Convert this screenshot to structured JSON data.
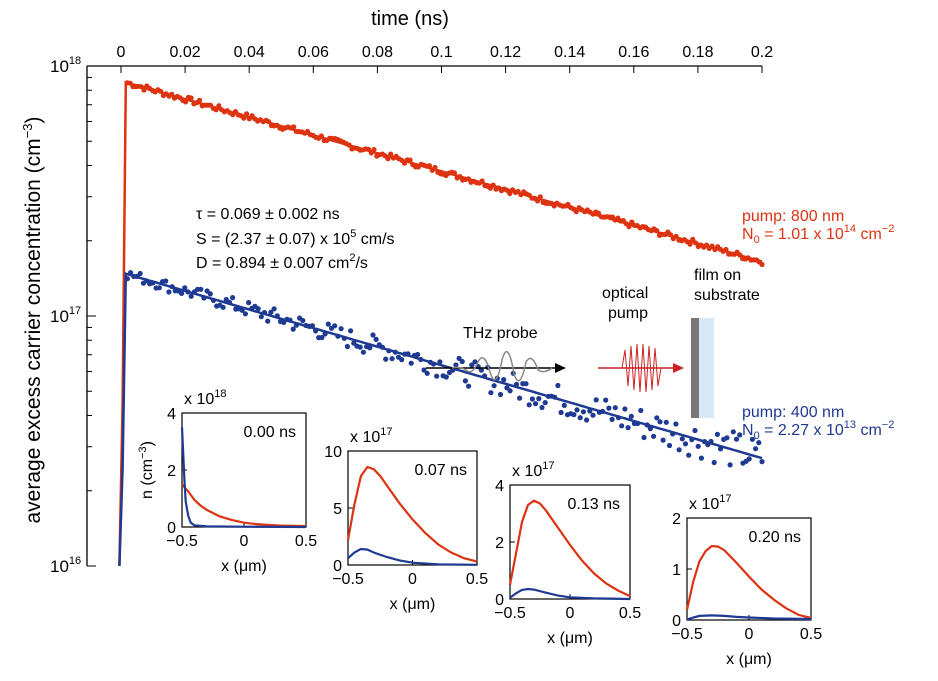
{
  "chart_data": {
    "type": "scatter",
    "xlabel": "time (ns)",
    "ylabel_main": "average excess carrier concentration (cm",
    "ylabel_sup": "−3",
    "ylabel_close": ")",
    "xlim": [
      0,
      0.2
    ],
    "ylim": [
      1e+16,
      1e+18
    ],
    "yscale": "log",
    "x_ticks": [
      "0",
      "0.02",
      "0.04",
      "0.06",
      "0.08",
      "0.1",
      "0.12",
      "0.14",
      "0.16",
      "0.18",
      "0.2"
    ],
    "y_tick_labels": [
      {
        "base": "10",
        "exp": "18"
      },
      {
        "base": "10",
        "exp": "17"
      },
      {
        "base": "10",
        "exp": "16"
      }
    ],
    "series": [
      {
        "color": "#dd3311",
        "label_pump": "pump: 800 nm",
        "label_n_pre": "N",
        "label_n_sub": "0",
        "label_n_mid": " = 1.01 x 10",
        "label_n_sup": "14",
        "label_n_mid2": " cm",
        "label_n_sup2": "−2",
        "peak": 8.6e+17,
        "end": 1.65e+17
      },
      {
        "color": "#1f3a93",
        "label_pump": "pump: 400 nm",
        "label_n_pre": "N",
        "label_n_sub": "0",
        "label_n_mid": " = 2.27 x 10",
        "label_n_sup": "13",
        "label_n_mid2": " cm",
        "label_n_sup2": "−2",
        "peak": 1.8e+17,
        "end": 2.7e+16
      }
    ],
    "fit": {
      "tau": "τ = 0.069 ± 0.002 ns",
      "s_pre": "S = (2.37 ± 0.07) x 10",
      "s_sup": "5",
      "s_post": " cm/s",
      "d_pre": "D = 0.894 ± 0.007 cm",
      "d_sup": "2",
      "d_post": "/s"
    },
    "schematic": {
      "thz": "THz probe",
      "pump1": "optical",
      "pump2": "pump",
      "film1": "film on",
      "film2": "substrate"
    },
    "insets": [
      {
        "time": "0.00 ns",
        "scale_pre": "x 10",
        "scale_exp": "18",
        "ylim": [
          0,
          4
        ],
        "yticks": [
          "0",
          "2",
          "4"
        ],
        "ylabel": "n (cm",
        "ylabel_sup": "−3",
        "ylabel_close": ")",
        "xticks": [
          "−0.5",
          "0",
          "0.5"
        ],
        "xlabel": "x (μm)",
        "red": [
          [
            -0.5,
            1.5
          ],
          [
            -0.45,
            1.25
          ],
          [
            -0.4,
            0.95
          ],
          [
            -0.35,
            0.75
          ],
          [
            -0.3,
            0.6
          ],
          [
            -0.2,
            0.38
          ],
          [
            -0.1,
            0.25
          ],
          [
            0,
            0.15
          ],
          [
            0.1,
            0.1
          ],
          [
            0.2,
            0.07
          ],
          [
            0.3,
            0.05
          ],
          [
            0.4,
            0.04
          ],
          [
            0.5,
            0.03
          ]
        ],
        "blue": [
          [
            -0.5,
            3.5
          ],
          [
            -0.49,
            2.6
          ],
          [
            -0.48,
            1.6
          ],
          [
            -0.47,
            0.9
          ],
          [
            -0.45,
            0.4
          ],
          [
            -0.43,
            0.15
          ],
          [
            -0.4,
            0.06
          ],
          [
            -0.3,
            0.02
          ],
          [
            0,
            0.01
          ],
          [
            0.5,
            0.0
          ]
        ]
      },
      {
        "time": "0.07 ns",
        "scale_pre": "x 10",
        "scale_exp": "17",
        "ylim": [
          0,
          10
        ],
        "yticks": [
          "0",
          "5",
          "10"
        ],
        "ylabel": "",
        "ylabel_sup": "",
        "ylabel_close": "",
        "xticks": [
          "−0.5",
          "0",
          "0.5"
        ],
        "xlabel": "x (μm)",
        "red": [
          [
            -0.5,
            2.2
          ],
          [
            -0.45,
            5.3
          ],
          [
            -0.4,
            7.8
          ],
          [
            -0.35,
            8.6
          ],
          [
            -0.3,
            8.4
          ],
          [
            -0.25,
            7.8
          ],
          [
            -0.2,
            7.0
          ],
          [
            -0.1,
            5.4
          ],
          [
            0,
            4.0
          ],
          [
            0.1,
            2.8
          ],
          [
            0.2,
            1.8
          ],
          [
            0.3,
            1.1
          ],
          [
            0.4,
            0.6
          ],
          [
            0.5,
            0.3
          ]
        ],
        "blue": [
          [
            -0.5,
            0.6
          ],
          [
            -0.45,
            1.1
          ],
          [
            -0.4,
            1.4
          ],
          [
            -0.35,
            1.35
          ],
          [
            -0.3,
            1.1
          ],
          [
            -0.2,
            0.7
          ],
          [
            -0.1,
            0.4
          ],
          [
            0,
            0.2
          ],
          [
            0.2,
            0.06
          ],
          [
            0.5,
            0.02
          ]
        ]
      },
      {
        "time": "0.13 ns",
        "scale_pre": "x 10",
        "scale_exp": "17",
        "ylim": [
          0,
          4
        ],
        "yticks": [
          "0",
          "2",
          "4"
        ],
        "ylabel": "",
        "ylabel_sup": "",
        "ylabel_close": "",
        "xticks": [
          "−0.5",
          "0",
          "0.5"
        ],
        "xlabel": "x (μm)",
        "red": [
          [
            -0.5,
            0.5
          ],
          [
            -0.45,
            1.6
          ],
          [
            -0.4,
            2.7
          ],
          [
            -0.35,
            3.3
          ],
          [
            -0.3,
            3.45
          ],
          [
            -0.25,
            3.35
          ],
          [
            -0.2,
            3.1
          ],
          [
            -0.1,
            2.5
          ],
          [
            0,
            1.9
          ],
          [
            0.1,
            1.35
          ],
          [
            0.2,
            0.9
          ],
          [
            0.3,
            0.55
          ],
          [
            0.4,
            0.3
          ],
          [
            0.5,
            0.1
          ]
        ],
        "blue": [
          [
            -0.5,
            0.05
          ],
          [
            -0.45,
            0.2
          ],
          [
            -0.4,
            0.32
          ],
          [
            -0.35,
            0.35
          ],
          [
            -0.3,
            0.33
          ],
          [
            -0.2,
            0.22
          ],
          [
            -0.1,
            0.12
          ],
          [
            0,
            0.06
          ],
          [
            0.2,
            0.02
          ],
          [
            0.5,
            0.0
          ]
        ]
      },
      {
        "time": "0.20 ns",
        "scale_pre": "x 10",
        "scale_exp": "17",
        "ylim": [
          0,
          2
        ],
        "yticks": [
          "0",
          "1",
          "2"
        ],
        "ylabel": "",
        "ylabel_sup": "",
        "ylabel_close": "",
        "xticks": [
          "−0.5",
          "0",
          "0.5"
        ],
        "xlabel": "x (μm)",
        "red": [
          [
            -0.5,
            0.2
          ],
          [
            -0.45,
            0.75
          ],
          [
            -0.4,
            1.15
          ],
          [
            -0.35,
            1.35
          ],
          [
            -0.3,
            1.45
          ],
          [
            -0.25,
            1.44
          ],
          [
            -0.2,
            1.37
          ],
          [
            -0.1,
            1.12
          ],
          [
            0,
            0.85
          ],
          [
            0.1,
            0.6
          ],
          [
            0.2,
            0.4
          ],
          [
            0.3,
            0.23
          ],
          [
            0.4,
            0.1
          ],
          [
            0.5,
            0.04
          ]
        ],
        "blue": [
          [
            -0.5,
            0.01
          ],
          [
            -0.45,
            0.05
          ],
          [
            -0.4,
            0.08
          ],
          [
            -0.3,
            0.09
          ],
          [
            -0.2,
            0.08
          ],
          [
            -0.1,
            0.06
          ],
          [
            0,
            0.05
          ],
          [
            0.2,
            0.03
          ],
          [
            0.5,
            0.02
          ]
        ]
      }
    ]
  }
}
